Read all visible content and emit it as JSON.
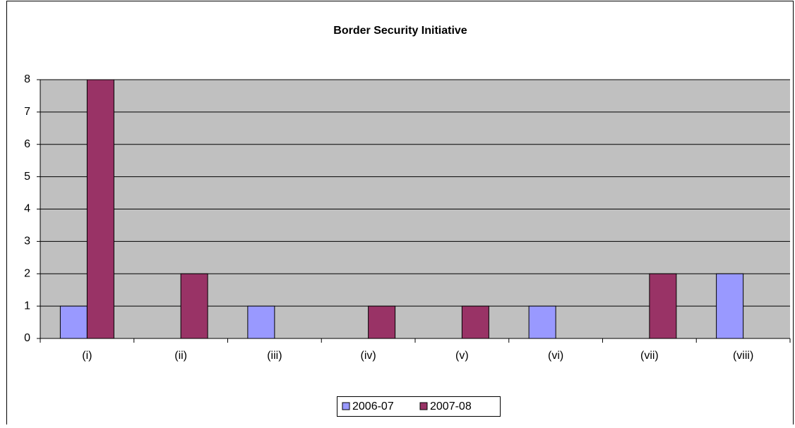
{
  "chart_data": {
    "type": "bar",
    "title": "Border Security Initiative",
    "categories": [
      "(i)",
      "(ii)",
      "(iii)",
      "(iv)",
      "(v)",
      "(vi)",
      "(vii)",
      "(viii)"
    ],
    "series": [
      {
        "name": "2006-07",
        "color": "#9999ff",
        "values": [
          1,
          0,
          1,
          0,
          0,
          1,
          0,
          2
        ]
      },
      {
        "name": "2007-08",
        "color": "#993366",
        "values": [
          8,
          2,
          0,
          1,
          1,
          0,
          2,
          0
        ]
      }
    ],
    "ylim": [
      0,
      8
    ],
    "yticks": [
      0,
      1,
      2,
      3,
      4,
      5,
      6,
      7,
      8
    ],
    "grid": true,
    "legend": "bottom"
  }
}
